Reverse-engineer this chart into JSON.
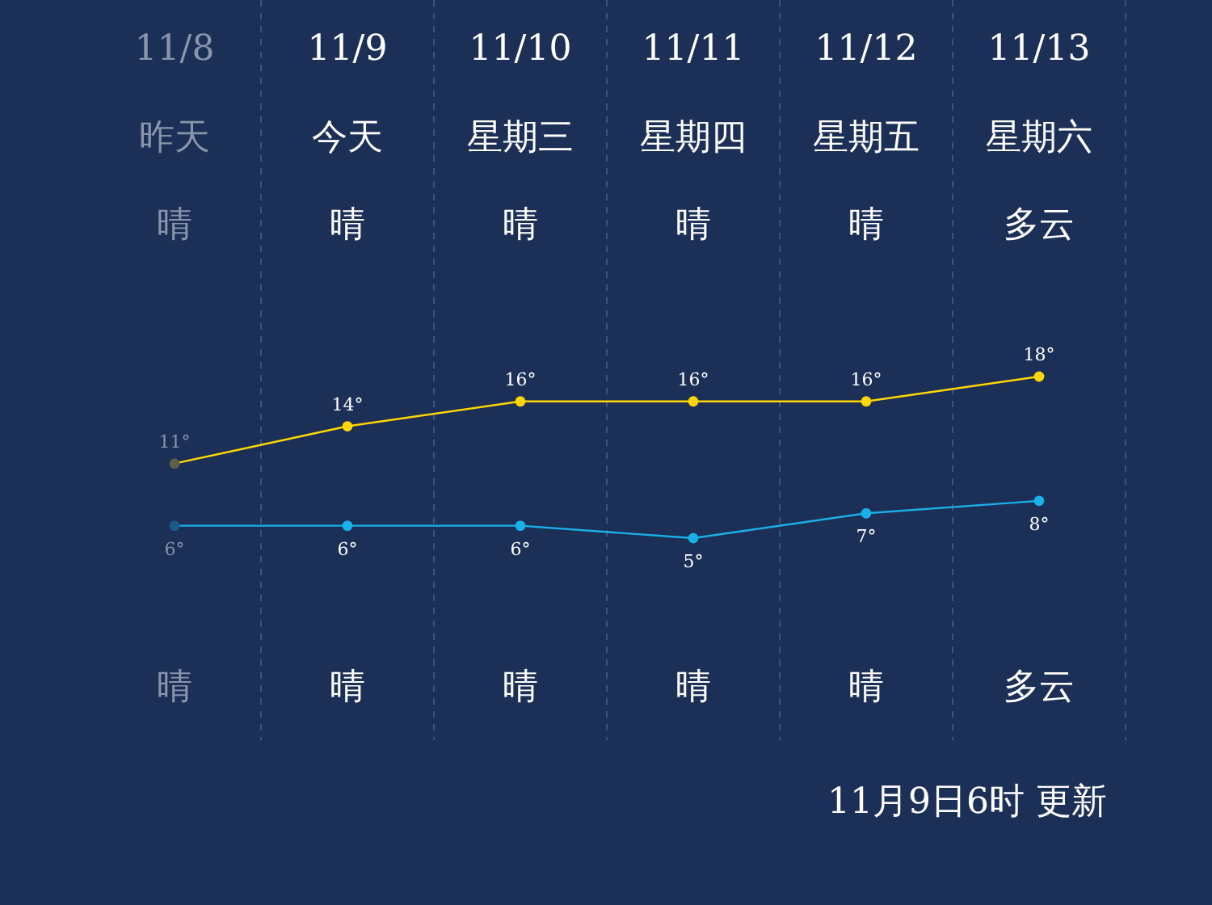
{
  "chart_data": {
    "type": "line",
    "categories": [
      "11/8",
      "11/9",
      "11/10",
      "11/11",
      "11/12",
      "11/13"
    ],
    "series": [
      {
        "color": "#ffd700",
        "colors": [
          "#5e6147",
          "#ffd700",
          "#ffd700",
          "#ffd700",
          "#ffd700",
          "#ffd700"
        ],
        "values": [
          11,
          14,
          16,
          16,
          16,
          18
        ],
        "value_labels": [
          "11°",
          "14°",
          "16°",
          "16°",
          "16°",
          "18°"
        ]
      },
      {
        "color": "#1ab0e8",
        "colors": [
          "#1d5a86",
          "#1ab0e8",
          "#1ab0e8",
          "#1ab0e8",
          "#1ab0e8",
          "#1ab0e8"
        ],
        "values": [
          6,
          6,
          6,
          5,
          7,
          8
        ],
        "value_labels": [
          "6°",
          "6°",
          "6°",
          "5°",
          "7°",
          "8°"
        ]
      }
    ],
    "annotations": [
      "昨天",
      "今天",
      "星期三",
      "星期四",
      "星期五",
      "星期六",
      "晴",
      "晴",
      "晴",
      "晴",
      "晴",
      "多云",
      "晴",
      "晴",
      "晴",
      "晴",
      "晴",
      "多云",
      "11月9日6时 更新"
    ],
    "grid": "x",
    "marker": "circle"
  }
}
